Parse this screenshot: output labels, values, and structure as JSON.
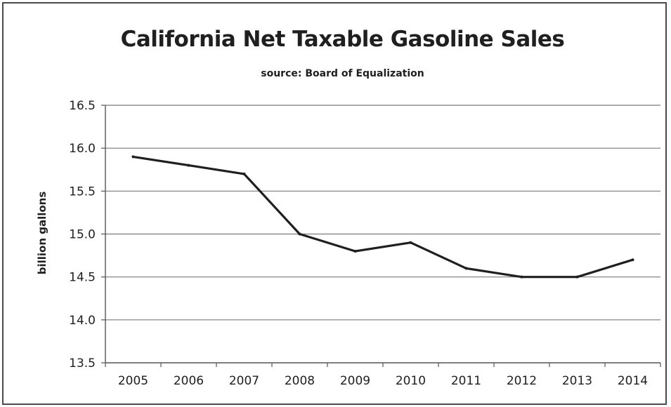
{
  "chart_data": {
    "type": "line",
    "title": "California Net Taxable Gasoline Sales",
    "subtitle": "source:  Board of Equalization",
    "xlabel": "",
    "ylabel": "billion gallons",
    "categories": [
      "2005",
      "2006",
      "2007",
      "2008",
      "2009",
      "2010",
      "2011",
      "2012",
      "2013",
      "2014"
    ],
    "series": [
      {
        "values": [
          15.9,
          15.8,
          15.7,
          15.0,
          14.8,
          14.9,
          14.6,
          14.5,
          14.5,
          14.7
        ],
        "color": "#1f1f1f"
      }
    ],
    "ylim": [
      13.5,
      16.5
    ],
    "yticks": [
      "13.5",
      "14.0",
      "14.5",
      "15.0",
      "15.5",
      "16.0",
      "16.5"
    ],
    "grid": true,
    "legend": "none"
  }
}
